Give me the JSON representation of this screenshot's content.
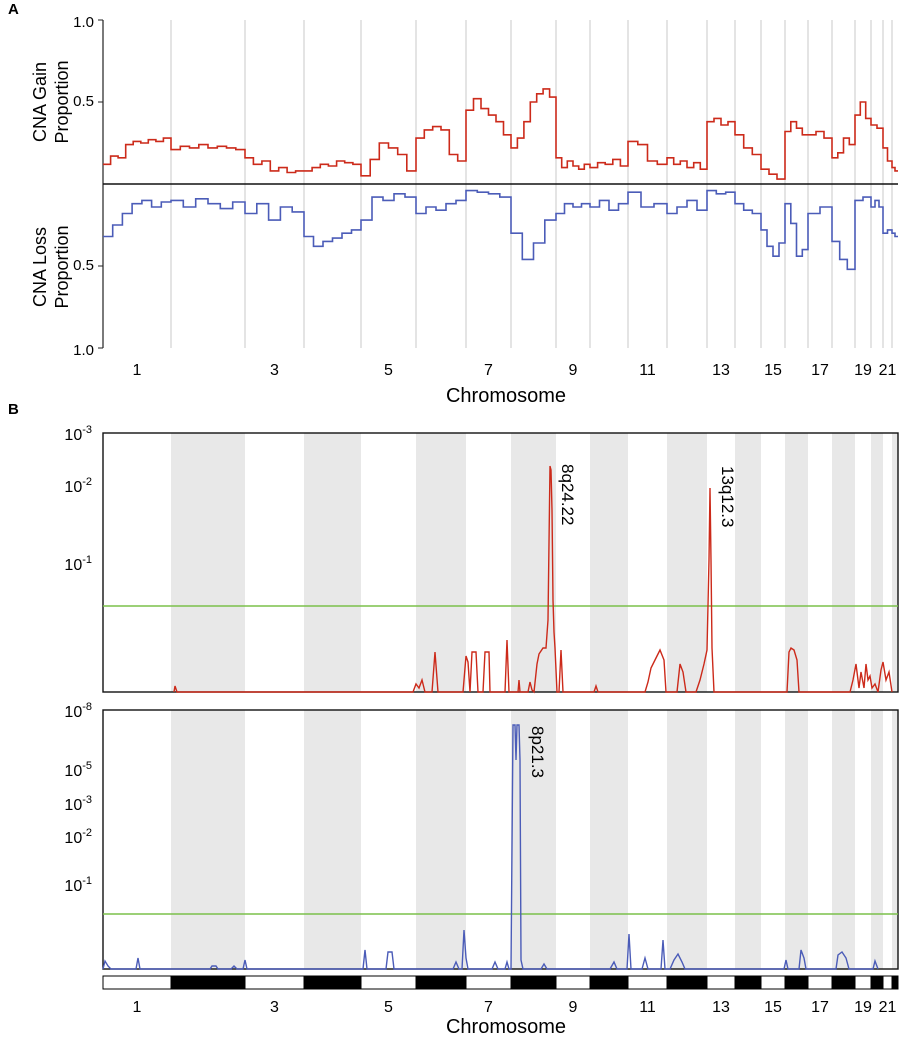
{
  "panel_labels": {
    "a": "A",
    "b": "B"
  },
  "colors": {
    "gain": "#cc2a1a",
    "loss": "#4b5cb8",
    "threshold": "#7bc04a",
    "shade": "#e8e8e8",
    "divider": "#c8c8c8"
  },
  "chart_data": [
    {
      "type": "line",
      "panel": "A",
      "xlabel": "Chromosome",
      "x_tick_labels": [
        "1",
        "3",
        "5",
        "7",
        "9",
        "11",
        "13",
        "15",
        "17",
        "19",
        "21"
      ],
      "gain": {
        "ylabel_line1": "CNA Gain",
        "ylabel_line2": "Proportion",
        "ylim": [
          0,
          1.0
        ],
        "tick_labels": [
          "1.0",
          "0.5"
        ],
        "series_by_chromosome": [
          {
            "chr": "1",
            "values": [
              0.12,
              0.17,
              0.16,
              0.24,
              0.26,
              0.25,
              0.27,
              0.26,
              0.28
            ]
          },
          {
            "chr": "2",
            "values": [
              0.21,
              0.23,
              0.22,
              0.24,
              0.22,
              0.23,
              0.22,
              0.21
            ]
          },
          {
            "chr": "3",
            "values": [
              0.16,
              0.12,
              0.14,
              0.08,
              0.1,
              0.07,
              0.08
            ]
          },
          {
            "chr": "4",
            "values": [
              0.08,
              0.1,
              0.12,
              0.11,
              0.14,
              0.13,
              0.12
            ]
          },
          {
            "chr": "5",
            "values": [
              0.05,
              0.15,
              0.25,
              0.22,
              0.18,
              0.08
            ]
          },
          {
            "chr": "6",
            "values": [
              0.28,
              0.33,
              0.35,
              0.33,
              0.18,
              0.14
            ]
          },
          {
            "chr": "7",
            "values": [
              0.45,
              0.52,
              0.46,
              0.42,
              0.38,
              0.3
            ]
          },
          {
            "chr": "8",
            "values": [
              0.22,
              0.28,
              0.38,
              0.5,
              0.55,
              0.58,
              0.53
            ]
          },
          {
            "chr": "9",
            "values": [
              0.16,
              0.1,
              0.14,
              0.11,
              0.09,
              0.12
            ]
          },
          {
            "chr": "10",
            "values": [
              0.1,
              0.13,
              0.12,
              0.15,
              0.11
            ]
          },
          {
            "chr": "11",
            "values": [
              0.26,
              0.24,
              0.14,
              0.12
            ]
          },
          {
            "chr": "12",
            "values": [
              0.16,
              0.12,
              0.14,
              0.1,
              0.13,
              0.09
            ]
          },
          {
            "chr": "13",
            "values": [
              0.38,
              0.4,
              0.36,
              0.38
            ]
          },
          {
            "chr": "14",
            "values": [
              0.3,
              0.22,
              0.18
            ]
          },
          {
            "chr": "15",
            "values": [
              0.09,
              0.06,
              0.03
            ]
          },
          {
            "chr": "16",
            "values": [
              0.32,
              0.38,
              0.34,
              0.3
            ]
          },
          {
            "chr": "17",
            "values": [
              0.3,
              0.32,
              0.28
            ]
          },
          {
            "chr": "18",
            "values": [
              0.16,
              0.19,
              0.28,
              0.24
            ]
          },
          {
            "chr": "19",
            "values": [
              0.42,
              0.5,
              0.4
            ]
          },
          {
            "chr": "20",
            "values": [
              0.36,
              0.34
            ]
          },
          {
            "chr": "21",
            "values": [
              0.22,
              0.14
            ]
          },
          {
            "chr": "22",
            "values": [
              0.1,
              0.08
            ]
          }
        ]
      },
      "loss": {
        "ylabel_line1": "CNA Loss",
        "ylabel_line2": "Proportion",
        "ylim": [
          0,
          1.0
        ],
        "tick_labels": [
          "0.5",
          "1.0"
        ],
        "series_by_chromosome": [
          {
            "chr": "1",
            "values": [
              0.32,
              0.25,
              0.18,
              0.12,
              0.1,
              0.14,
              0.11
            ]
          },
          {
            "chr": "2",
            "values": [
              0.1,
              0.14,
              0.09,
              0.12,
              0.15,
              0.11
            ]
          },
          {
            "chr": "3",
            "values": [
              0.18,
              0.12,
              0.22,
              0.14,
              0.17
            ]
          },
          {
            "chr": "4",
            "values": [
              0.32,
              0.38,
              0.35,
              0.33,
              0.3,
              0.28
            ]
          },
          {
            "chr": "5",
            "values": [
              0.22,
              0.08,
              0.1,
              0.06,
              0.08
            ]
          },
          {
            "chr": "6",
            "values": [
              0.18,
              0.14,
              0.16,
              0.12,
              0.1
            ]
          },
          {
            "chr": "7",
            "values": [
              0.04,
              0.05,
              0.06,
              0.08
            ]
          },
          {
            "chr": "8",
            "values": [
              0.3,
              0.46,
              0.36,
              0.22
            ]
          },
          {
            "chr": "9",
            "values": [
              0.18,
              0.12,
              0.14,
              0.12
            ]
          },
          {
            "chr": "10",
            "values": [
              0.14,
              0.1,
              0.16,
              0.12
            ]
          },
          {
            "chr": "11",
            "values": [
              0.05,
              0.14,
              0.12
            ]
          },
          {
            "chr": "12",
            "values": [
              0.18,
              0.14,
              0.1,
              0.16
            ]
          },
          {
            "chr": "13",
            "values": [
              0.04,
              0.06,
              0.05
            ]
          },
          {
            "chr": "14",
            "values": [
              0.12,
              0.16,
              0.18
            ]
          },
          {
            "chr": "15",
            "values": [
              0.28,
              0.38,
              0.44,
              0.36
            ]
          },
          {
            "chr": "16",
            "values": [
              0.12,
              0.24,
              0.44,
              0.4
            ]
          },
          {
            "chr": "17",
            "values": [
              0.18,
              0.14
            ]
          },
          {
            "chr": "18",
            "values": [
              0.35,
              0.46,
              0.52
            ]
          },
          {
            "chr": "19",
            "values": [
              0.1,
              0.08
            ]
          },
          {
            "chr": "20",
            "values": [
              0.14,
              0.1,
              0.14
            ]
          },
          {
            "chr": "21",
            "values": [
              0.3,
              0.28
            ]
          },
          {
            "chr": "22",
            "values": [
              0.3,
              0.32
            ]
          }
        ]
      }
    },
    {
      "type": "line",
      "panel": "B",
      "xlabel": "Chromosome",
      "x_tick_labels": [
        "1",
        "3",
        "5",
        "7",
        "9",
        "11",
        "13",
        "15",
        "17",
        "19",
        "21"
      ],
      "gain": {
        "y_tick_labels": [
          "10-3",
          "10-2",
          "10-1"
        ],
        "y_tick_bases": [
          "10",
          "10",
          "10"
        ],
        "y_tick_exponents": [
          "-3",
          "-2",
          "-1"
        ],
        "threshold": 0.25,
        "peaks": [
          {
            "label": "8q24.22",
            "chr": "8",
            "value": 0.0039
          },
          {
            "label": "13q12.3",
            "chr": "13",
            "value": 0.012
          }
        ]
      },
      "loss": {
        "y_tick_labels": [
          "10-8",
          "10-5",
          "10-3",
          "10-2",
          "10-1"
        ],
        "y_tick_bases": [
          "10",
          "10",
          "10",
          "10",
          "10"
        ],
        "y_tick_exponents": [
          "-8",
          "-5",
          "-3",
          "-2",
          "-1"
        ],
        "threshold": 0.25,
        "peaks": [
          {
            "label": "8p21.3",
            "chr": "8",
            "value": 1e-07
          }
        ]
      }
    }
  ]
}
